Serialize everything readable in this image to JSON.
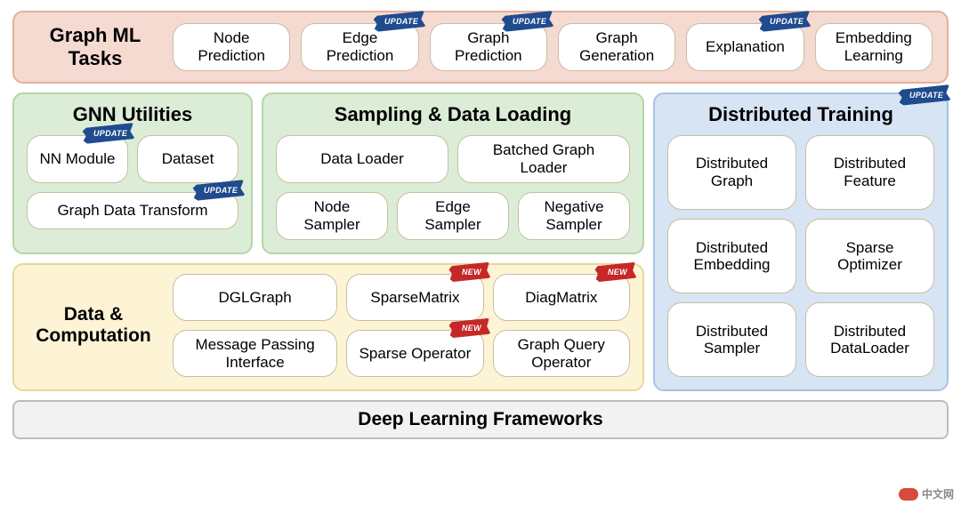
{
  "colors": {
    "tasks_bg": "#f5dad1",
    "tasks_border": "#e4b099",
    "green_bg": "#dcedd7",
    "green_border": "#b4d6a7",
    "blue_bg": "#d7e4f4",
    "blue_border": "#a7c3e6",
    "yellow_bg": "#fdf3d5",
    "yellow_border": "#e7d99a",
    "grey_bg": "#f2f2f2",
    "grey_border": "#bdbdbd",
    "pill_border": "#c8bea2",
    "update_badge": "#1f4b8f",
    "new_badge": "#c62828",
    "watermark_logo": "#d84a3a"
  },
  "badges": {
    "update": "UPDATE",
    "new": "NEW"
  },
  "tasks": {
    "title": "Graph ML Tasks",
    "items": [
      {
        "label": "Node Prediction",
        "badge": null
      },
      {
        "label": "Edge Prediction",
        "badge": "update"
      },
      {
        "label": "Graph Prediction",
        "badge": "update"
      },
      {
        "label": "Graph Generation",
        "badge": null
      },
      {
        "label": "Explanation",
        "badge": "update"
      },
      {
        "label": "Embedding Learning",
        "badge": null
      }
    ]
  },
  "gnn_utilities": {
    "title": "GNN Utilities",
    "items": {
      "nn_module": {
        "label": "NN Module",
        "badge": "update"
      },
      "dataset": {
        "label": "Dataset",
        "badge": null
      },
      "transform": {
        "label": "Graph Data Transform",
        "badge": "update"
      }
    }
  },
  "sampling": {
    "title": "Sampling & Data Loading",
    "row1": [
      {
        "label": "Data Loader",
        "badge": null
      },
      {
        "label": "Batched Graph Loader",
        "badge": null
      }
    ],
    "row2": [
      {
        "label": "Node Sampler",
        "badge": null
      },
      {
        "label": "Edge Sampler",
        "badge": null
      },
      {
        "label": "Negative Sampler",
        "badge": null
      }
    ]
  },
  "distributed": {
    "title": "Distributed Training",
    "title_badge": "update",
    "items": [
      {
        "label": "Distributed Graph"
      },
      {
        "label": "Distributed Feature"
      },
      {
        "label": "Distributed Embedding"
      },
      {
        "label": "Sparse Optimizer"
      },
      {
        "label": "Distributed Sampler"
      },
      {
        "label": "Distributed DataLoader"
      }
    ]
  },
  "data_computation": {
    "title": "Data & Computation",
    "row1": [
      {
        "label": "DGLGraph",
        "badge": null
      },
      {
        "label": "SparseMatrix",
        "badge": "new"
      },
      {
        "label": "DiagMatrix",
        "badge": "new"
      }
    ],
    "row2": [
      {
        "label": "Message Passing Interface",
        "badge": null
      },
      {
        "label": "Sparse Operator",
        "badge": "new"
      },
      {
        "label": "Graph Query Operator",
        "badge": null
      }
    ]
  },
  "bottom": {
    "label": "Deep Learning Frameworks"
  },
  "watermark": "中文网"
}
